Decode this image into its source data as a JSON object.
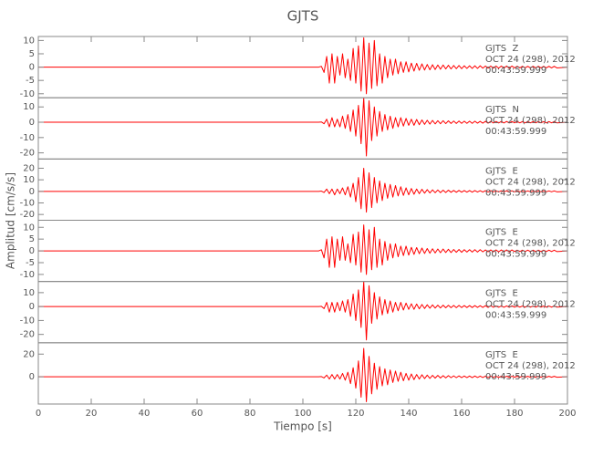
{
  "chart_data": {
    "type": "line",
    "title": "GJTS",
    "x_label": "Tiempo [s]",
    "y_label": "Amplitud [cm/s/s]",
    "xlim": [
      0,
      200
    ],
    "xticks": [
      0,
      20,
      40,
      60,
      80,
      100,
      120,
      140,
      160,
      180,
      200
    ],
    "x": [
      0,
      106,
      107,
      108,
      109,
      110,
      111,
      112,
      113,
      114,
      115,
      116,
      117,
      118,
      119,
      120,
      121,
      122,
      123,
      124,
      125,
      126,
      127,
      128,
      129,
      130,
      131,
      132,
      133,
      134,
      135,
      136,
      137,
      138,
      139,
      140,
      141,
      142,
      143,
      144,
      145,
      146,
      147,
      148,
      149,
      150,
      151,
      152,
      153,
      154,
      155,
      156,
      157,
      158,
      159,
      160,
      161,
      162,
      163,
      164,
      165,
      166,
      167,
      168,
      169,
      170,
      171,
      172,
      173,
      174,
      175,
      176,
      177,
      178,
      179,
      180,
      181,
      182,
      183,
      184,
      185,
      186,
      187,
      188,
      189,
      190,
      191,
      192,
      193,
      194,
      195,
      196,
      200
    ],
    "panels": [
      {
        "color": "#ff0000",
        "ylim": [
          -11.5,
          11.5
        ],
        "yticks": [
          -10,
          -5,
          0,
          5,
          10
        ],
        "labels": [
          "GJTS  Z",
          "OCT 24 (298), 2012",
          "00:43:59.999"
        ],
        "values": [
          0,
          0,
          0.3,
          -2,
          4,
          -6,
          5,
          -6,
          4,
          -3,
          5,
          -4,
          3,
          -5,
          7,
          -6,
          8,
          -9,
          11,
          -10,
          9,
          -8,
          10,
          -7,
          5,
          -6,
          4,
          -4,
          3,
          -3,
          3,
          -2.5,
          2,
          -2,
          2,
          -1.8,
          1.5,
          -1.5,
          1.4,
          -1.2,
          1.2,
          -1.1,
          1,
          -1,
          0.9,
          -0.9,
          0.8,
          -0.8,
          0.8,
          -0.7,
          0.7,
          -0.7,
          0.6,
          -0.6,
          0.6,
          -0.6,
          0.5,
          -0.5,
          0.5,
          -0.5,
          0.5,
          -0.5,
          0.5,
          -0.4,
          0.4,
          -0.4,
          0.4,
          -0.4,
          0.4,
          -0.4,
          0.4,
          -0.4,
          0.4,
          -0.4,
          0.4,
          -0.3,
          0.3,
          -0.3,
          0.3,
          -0.3,
          0.3,
          -0.3,
          0.3,
          -0.3,
          0.3,
          -0.3,
          0.3,
          -0.3,
          0.3,
          -0.3,
          0.3,
          -0.3,
          0
        ]
      },
      {
        "color": "#ff0000",
        "ylim": [
          -24,
          16
        ],
        "yticks": [
          -20,
          -10,
          0,
          10
        ],
        "labels": [
          "GJTS  N",
          "OCT 24 (298), 2012",
          "00:43:59.999"
        ],
        "values": [
          0,
          0,
          0.2,
          -1,
          2,
          -3,
          3,
          -3,
          2,
          -3,
          4,
          -4,
          5,
          -6,
          8,
          -9,
          11,
          -14,
          16,
          -22,
          14,
          -12,
          10,
          -9,
          7,
          -6,
          5,
          -5,
          4,
          -4,
          3,
          -3,
          3,
          -2.5,
          2.5,
          -2,
          2,
          -2,
          1.8,
          -1.6,
          1.5,
          -1.4,
          1.3,
          -1.2,
          1.2,
          -1.1,
          1,
          -1,
          1,
          -0.9,
          0.9,
          -0.8,
          0.8,
          -0.8,
          0.8,
          -0.7,
          0.7,
          -0.7,
          0.7,
          -0.7,
          0.7,
          -0.6,
          0.6,
          -0.6,
          0.6,
          -0.6,
          0.6,
          -0.5,
          0.5,
          -0.5,
          0.5,
          -0.5,
          0.5,
          -0.5,
          0.5,
          -0.4,
          0.4,
          -0.4,
          0.4,
          -0.4,
          0.4,
          -0.4,
          0.4,
          -0.4,
          0.4,
          -0.4,
          0.4,
          -0.4,
          0.4,
          -0.4,
          0.4,
          -0.4,
          0
        ]
      },
      {
        "color": "#ff0000",
        "ylim": [
          -25,
          28
        ],
        "yticks": [
          -20,
          -10,
          0,
          10,
          20
        ],
        "labels": [
          "GJTS  E",
          "OCT 24 (298), 2012",
          "00:43:59.999"
        ],
        "values": [
          0,
          0,
          0.2,
          -1,
          2,
          -2,
          2,
          -3,
          2,
          -2,
          3,
          -3,
          4,
          -5,
          7,
          -9,
          12,
          -15,
          20,
          -18,
          16,
          -14,
          12,
          -10,
          9,
          -8,
          7,
          -6,
          6,
          -5,
          5,
          -4,
          4,
          -3.5,
          3,
          -3,
          2.5,
          -2.5,
          2,
          -2,
          1.8,
          -1.6,
          1.5,
          -1.4,
          1.3,
          -1.2,
          1.2,
          -1.1,
          1,
          -1,
          1,
          -0.8,
          0.8,
          -0.8,
          0.8,
          -0.7,
          0.7,
          -0.7,
          0.7,
          -0.7,
          0.7,
          -0.6,
          0.6,
          -0.6,
          0.6,
          -0.6,
          0.6,
          -0.5,
          0.5,
          -0.5,
          0.5,
          -0.5,
          0.5,
          -0.5,
          0.5,
          -0.4,
          0.4,
          -0.4,
          0.4,
          -0.4,
          0.4,
          -0.4,
          0.4,
          -0.4,
          0.4,
          -0.4,
          0.4,
          -0.4,
          0.4,
          -0.4,
          0.4,
          -0.4,
          0
        ]
      },
      {
        "color": "#ff0000",
        "ylim": [
          -13,
          13
        ],
        "yticks": [
          -10,
          -5,
          0,
          5,
          10
        ],
        "labels": [
          "GJTS  E",
          "OCT 24 (298), 2012",
          "00:43:59.999"
        ],
        "values": [
          0,
          0,
          0.5,
          -3,
          5,
          -7,
          6,
          -7,
          5,
          -4,
          6,
          -4,
          3,
          -5,
          7,
          -6,
          8,
          -9,
          11,
          -10,
          9,
          -8,
          10,
          -7,
          5,
          -6,
          4,
          -4,
          3,
          -3,
          3,
          -2.5,
          2,
          -2,
          2,
          -1.8,
          1.5,
          -1.5,
          1.4,
          -1.2,
          1.2,
          -1.1,
          1,
          -1,
          0.9,
          -0.9,
          0.8,
          -0.8,
          0.8,
          -0.7,
          0.7,
          -0.7,
          0.6,
          -0.6,
          0.6,
          -0.6,
          0.5,
          -0.5,
          0.5,
          -0.5,
          0.5,
          -0.5,
          0.5,
          -0.4,
          0.4,
          -0.4,
          0.4,
          -0.4,
          0.4,
          -0.4,
          0.4,
          -0.4,
          0.4,
          -0.4,
          0.4,
          -0.3,
          0.3,
          -0.3,
          0.3,
          -0.3,
          0.3,
          -0.3,
          0.3,
          -0.3,
          0.3,
          -0.3,
          0.3,
          -0.3,
          0.3,
          -0.3,
          0.3,
          -0.3,
          0
        ]
      },
      {
        "color": "#ff0000",
        "ylim": [
          -26,
          18
        ],
        "yticks": [
          -20,
          -10,
          0,
          10
        ],
        "labels": [
          "GJTS  E",
          "OCT 24 (298), 2012",
          "00:43:59.999"
        ],
        "values": [
          0,
          0,
          0.2,
          -1.5,
          3,
          -4,
          3,
          -4,
          3,
          -3,
          4,
          -4,
          5,
          -7,
          9,
          -10,
          12,
          -15,
          18,
          -24,
          15,
          -12,
          10,
          -9,
          7,
          -6,
          5,
          -5,
          4,
          -4,
          3,
          -3,
          3,
          -2.5,
          2.5,
          -2,
          2,
          -2,
          1.8,
          -1.6,
          1.5,
          -1.4,
          1.3,
          -1.2,
          1.2,
          -1.1,
          1,
          -1,
          1,
          -0.9,
          0.9,
          -0.8,
          0.8,
          -0.8,
          0.8,
          -0.7,
          0.7,
          -0.7,
          0.7,
          -0.7,
          0.7,
          -0.6,
          0.6,
          -0.6,
          0.6,
          -0.6,
          0.6,
          -0.5,
          0.5,
          -0.5,
          0.5,
          -0.5,
          0.5,
          -0.5,
          0.5,
          -0.4,
          0.4,
          -0.4,
          0.4,
          -0.4,
          0.4,
          -0.4,
          0.4,
          -0.4,
          0.4,
          -0.4,
          0.4,
          -0.4,
          0.4,
          -0.4,
          0.4,
          -0.4,
          0
        ]
      },
      {
        "color": "#ff0000",
        "ylim": [
          -24,
          30
        ],
        "yticks": [
          0,
          20
        ],
        "labels": [
          "GJTS  E",
          "OCT 24 (298), 2012",
          "00:43:59.999"
        ],
        "values": [
          0,
          0,
          0.2,
          -1,
          1.5,
          -2,
          2,
          -2,
          2,
          -2,
          3,
          -3,
          4,
          -6,
          8,
          -10,
          14,
          -18,
          25,
          -22,
          18,
          -15,
          12,
          -11,
          9,
          -8,
          7,
          -7,
          6,
          -5,
          5,
          -4,
          4,
          -3.5,
          3,
          -3,
          2.5,
          -2.5,
          2,
          -2,
          1.8,
          -1.6,
          1.5,
          -1.4,
          1.3,
          -1.2,
          1.2,
          -1.1,
          1,
          -1,
          1,
          -0.8,
          0.8,
          -0.8,
          0.8,
          -0.7,
          0.7,
          -0.7,
          0.7,
          -0.7,
          0.7,
          -0.6,
          0.6,
          -0.6,
          0.6,
          -0.6,
          0.6,
          -0.5,
          0.5,
          -0.5,
          0.5,
          -0.5,
          0.5,
          -0.5,
          0.5,
          -0.4,
          0.4,
          -0.4,
          0.4,
          -0.4,
          0.4,
          -0.4,
          0.4,
          -0.4,
          0.4,
          -0.4,
          0.4,
          -0.4,
          0.4,
          -0.4,
          0.4,
          -0.4,
          0
        ]
      }
    ]
  }
}
